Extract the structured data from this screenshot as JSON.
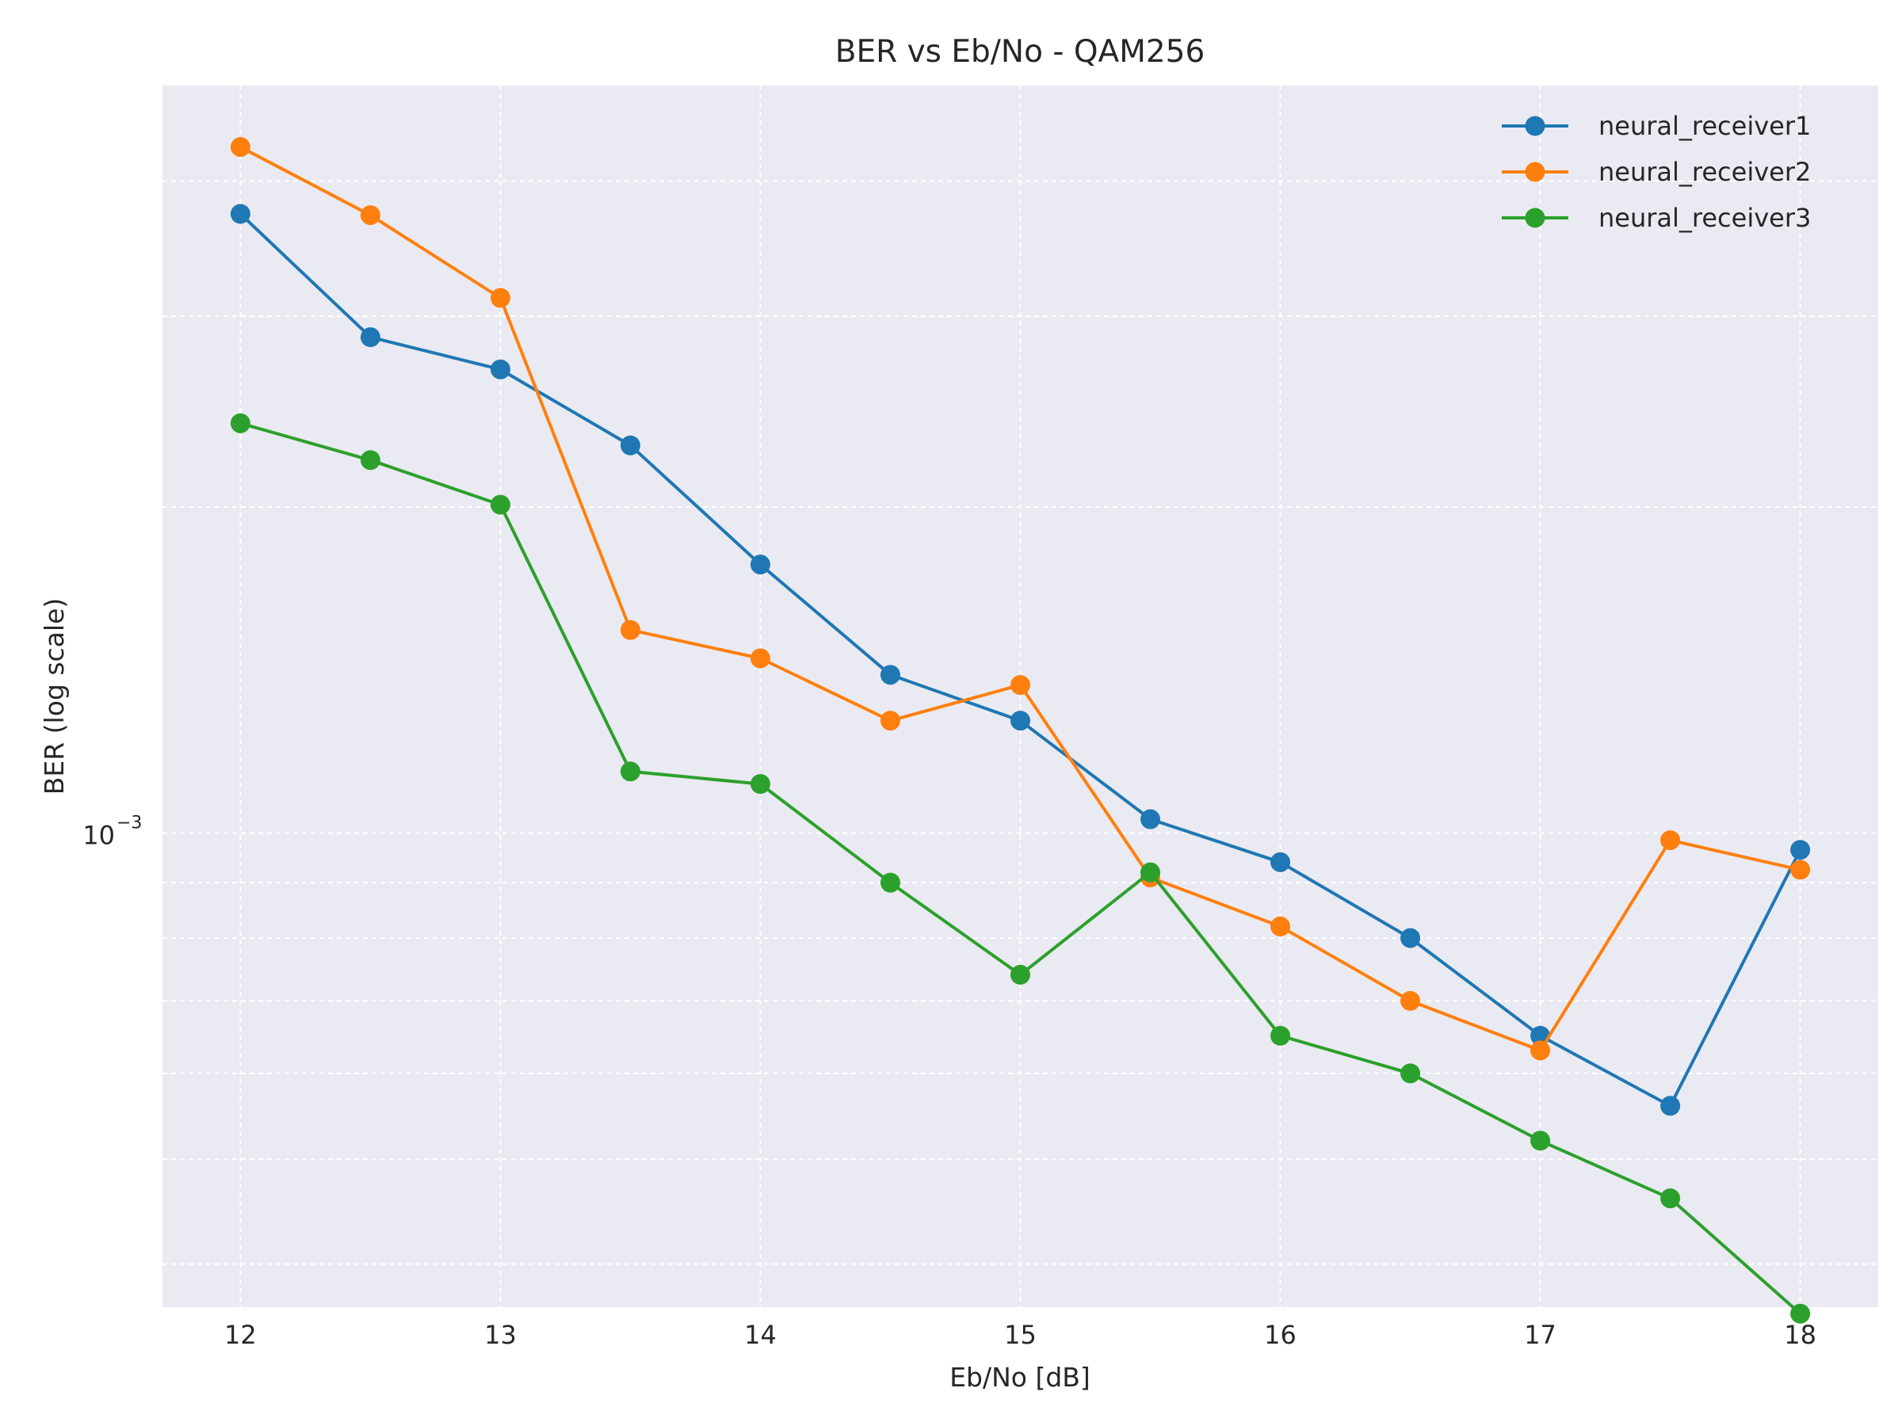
{
  "chart_data": {
    "type": "line",
    "title": "BER vs Eb/No - QAM256",
    "xlabel": "Eb/No [dB]",
    "ylabel": "BER (log scale)",
    "x": [
      12,
      12.5,
      13,
      13.5,
      14,
      14.5,
      15,
      15.5,
      16,
      16.5,
      17,
      17.5,
      18
    ],
    "x_ticks": [
      12,
      13,
      14,
      15,
      16,
      17,
      18
    ],
    "x_tick_labels": [
      "12",
      "13",
      "14",
      "15",
      "16",
      "17",
      "18"
    ],
    "xlim": [
      11.7,
      18.3
    ],
    "y_scale": "log",
    "ylim": [
      0.000365,
      0.0049
    ],
    "y_major_ticks": [
      0.001
    ],
    "y_major_tick_base": "10",
    "y_major_tick_exponent": "−3",
    "y_minor_ticks": [
      0.0004,
      0.0005,
      0.0006,
      0.0007,
      0.0008,
      0.0009,
      0.002,
      0.003,
      0.004
    ],
    "grid": true,
    "legend_position": "top-right",
    "series": [
      {
        "name": "neural_receiver1",
        "color": "#1f77b4",
        "values": [
          0.00373,
          0.00287,
          0.00268,
          0.00228,
          0.00177,
          0.0014,
          0.00127,
          0.00103,
          0.00094,
          0.0008,
          0.00065,
          0.00056,
          0.000965
        ]
      },
      {
        "name": "neural_receiver2",
        "color": "#ff7f0e",
        "values": [
          0.0043,
          0.00372,
          0.00312,
          0.00154,
          0.00145,
          0.00127,
          0.00137,
          0.00091,
          0.00082,
          0.0007,
          0.00063,
          0.000985,
          0.000925
        ]
      },
      {
        "name": "neural_receiver3",
        "color": "#2ca02c",
        "values": [
          0.00239,
          0.00221,
          0.00201,
          0.00114,
          0.00111,
          0.0009,
          0.00074,
          0.00092,
          0.00065,
          0.0006,
          0.00052,
          0.00046,
          0.00036
        ]
      }
    ]
  }
}
